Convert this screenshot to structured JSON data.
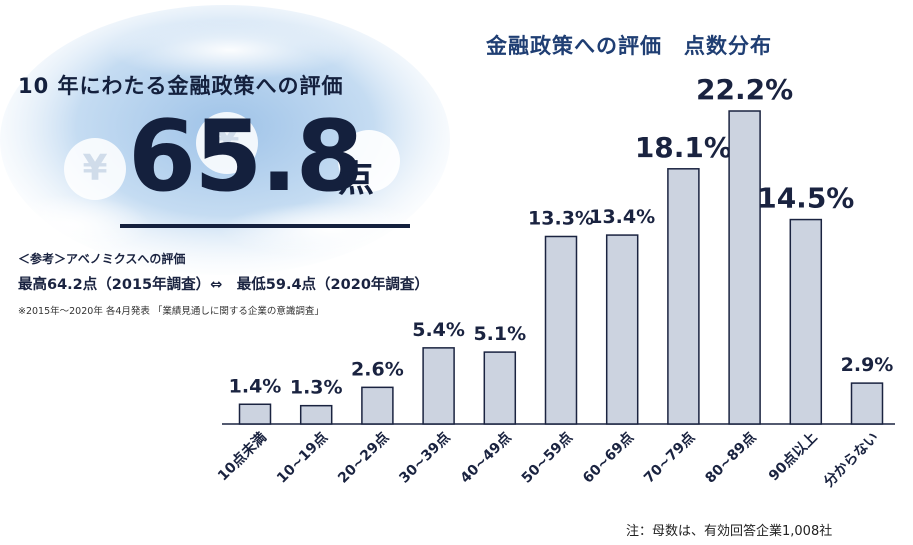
{
  "summary": {
    "subtitle": "10 年にわたる金融政策への評価",
    "score": "65.8",
    "score_unit": "点",
    "ref_title": "＜参考＞アベノミクスへの評価",
    "ref_line": "最高64.2点（2015年調査）⇔　最低59.4点（2020年調査）",
    "ref_note": "※2015年～2020年 各4月発表 「業績見通しに関する企業の意識調査」",
    "yen_icon": "¥"
  },
  "footnote": "注：母数は、有効回答企業1,008社",
  "colors": {
    "bar_fill": "#ccd3e0",
    "bar_stroke": "#1a2340",
    "title": "#1f3e73",
    "text": "#1a2340"
  },
  "chart_data": {
    "type": "bar",
    "title": "金融政策への評価　点数分布",
    "categories": [
      "10点未満",
      "10~19点",
      "20~29点",
      "30~39点",
      "40~49点",
      "50~59点",
      "60~69点",
      "70~79点",
      "80~89点",
      "90点以上",
      "分からない"
    ],
    "values": [
      1.4,
      1.3,
      2.6,
      5.4,
      5.1,
      13.3,
      13.4,
      18.1,
      22.2,
      14.5,
      2.9
    ],
    "value_labels": [
      "1.4%",
      "1.3%",
      "2.6%",
      "5.4%",
      "5.1%",
      "13.3%",
      "13.4%",
      "18.1%",
      "22.2%",
      "14.5%",
      "2.9%"
    ],
    "unit": "%",
    "ylim": [
      0,
      22.2
    ],
    "grid": false,
    "legend": "none"
  }
}
